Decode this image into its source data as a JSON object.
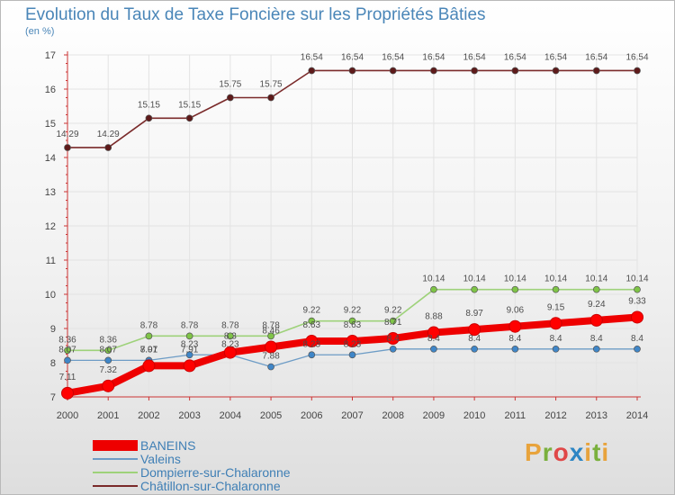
{
  "header": {
    "title": "Evolution du Taux de Taxe Foncière sur les Propriétés Bâties",
    "subtitle": "(en %)"
  },
  "logo": {
    "letters": [
      "P",
      "r",
      "o",
      "x",
      "i",
      "t",
      "i"
    ],
    "colors": [
      "#e8a33c",
      "#7ab03d",
      "#e04848",
      "#2d86c4",
      "#e8a33c",
      "#7ab03d",
      "#e8a33c"
    ]
  },
  "colors": {
    "axis": "#cc3333",
    "grid": "#e3e3e3",
    "label": "#444444"
  },
  "chart_data": {
    "type": "line",
    "title": "Evolution du Taux de Taxe Foncière sur les Propriétés Bâties",
    "ylabel": "(en %)",
    "xlabel": "",
    "x": [
      "2000",
      "2001",
      "2002",
      "2003",
      "2004",
      "2005",
      "2006",
      "2007",
      "2008",
      "2009",
      "2010",
      "2011",
      "2012",
      "2013",
      "2014"
    ],
    "ylim": [
      7,
      17
    ],
    "yticks": [
      "7",
      "8",
      "9",
      "10",
      "11",
      "12",
      "13",
      "14",
      "15",
      "16",
      "17"
    ],
    "grid": true,
    "legend": "bottom-left",
    "series": [
      {
        "name": "BANEINS",
        "color": "#ee0000",
        "marker": "#ff0000",
        "values": [
          7.11,
          7.32,
          7.91,
          7.91,
          8.3,
          8.46,
          8.63,
          8.63,
          8.71,
          8.88,
          8.97,
          9.06,
          9.15,
          9.24,
          9.33
        ],
        "labels": [
          "7.11",
          "7.32",
          "7.91",
          "7.91",
          "8.3",
          "8.46",
          "8.63",
          "8.63",
          "8.71",
          "8.88",
          "8.97",
          "9.06",
          "9.15",
          "9.24",
          "9.33"
        ]
      },
      {
        "name": "Valeins",
        "color": "#6d9cc6",
        "marker": "#3f86c8",
        "values": [
          8.07,
          8.07,
          8.07,
          8.23,
          8.23,
          7.88,
          8.23,
          8.23,
          8.4,
          8.4,
          8.4,
          8.4,
          8.4,
          8.4,
          8.4
        ],
        "labels": [
          "8.07",
          "8.07",
          "8.07",
          "8.23",
          "8.23",
          "7.88",
          "8.23",
          "8.23",
          "8.4",
          "8.4",
          "8.4",
          "8.4",
          "8.4",
          "8.4",
          "8.4"
        ]
      },
      {
        "name": "Dompierre-sur-Chalaronne",
        "color": "#9ed27a",
        "marker": "#7fc447",
        "values": [
          8.36,
          8.36,
          8.78,
          8.78,
          8.78,
          8.78,
          9.22,
          9.22,
          9.22,
          10.14,
          10.14,
          10.14,
          10.14,
          10.14,
          10.14
        ],
        "labels": [
          "8.36",
          "8.36",
          "8.78",
          "8.78",
          "8.78",
          "8.78",
          "9.22",
          "9.22",
          "9.22",
          "10.14",
          "10.14",
          "10.14",
          "10.14",
          "10.14",
          "10.14"
        ]
      },
      {
        "name": "Châtillon-sur-Chalaronne",
        "color": "#7a2a2a",
        "marker": "#5e1a1a",
        "values": [
          14.29,
          14.29,
          15.15,
          15.15,
          15.75,
          15.75,
          16.54,
          16.54,
          16.54,
          16.54,
          16.54,
          16.54,
          16.54,
          16.54,
          16.54
        ],
        "labels": [
          "14.29",
          "14.29",
          "15.15",
          "15.15",
          "15.75",
          "15.75",
          "16.54",
          "16.54",
          "16.54",
          "16.54",
          "16.54",
          "16.54",
          "16.54",
          "16.54",
          "16.54"
        ]
      }
    ]
  }
}
